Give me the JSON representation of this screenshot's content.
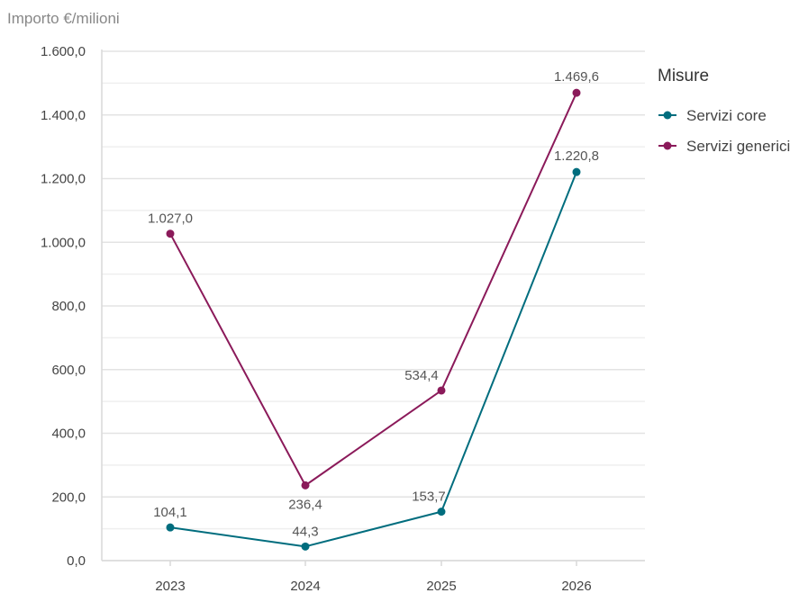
{
  "chart_data": {
    "type": "line",
    "ylabel": "Importo €/milioni",
    "xlabel": "",
    "categories": [
      "2023",
      "2024",
      "2025",
      "2026"
    ],
    "ylim": [
      0,
      1600
    ],
    "yticks": [
      0,
      200,
      400,
      600,
      800,
      1000,
      1200,
      1400,
      1600
    ],
    "ytick_labels": [
      "0,0",
      "200,0",
      "400,0",
      "600,0",
      "800,0",
      "1.000,0",
      "1.200,0",
      "1.400,0",
      "1.600,0"
    ],
    "grid": true,
    "legend": {
      "title": "Misure",
      "placement": "right"
    },
    "series": [
      {
        "name": "Servizi core",
        "color": "#006d7e",
        "values": [
          104.1,
          44.3,
          153.7,
          1220.8
        ],
        "labels": [
          "104,1",
          "44,3",
          "153,7",
          "1.220,8"
        ]
      },
      {
        "name": "Servizi generici",
        "color": "#8b1a5a",
        "values": [
          1027.0,
          236.4,
          534.4,
          1469.6
        ],
        "labels": [
          "1.027,0",
          "236,4",
          "534,4",
          "1.469,6"
        ]
      }
    ]
  }
}
